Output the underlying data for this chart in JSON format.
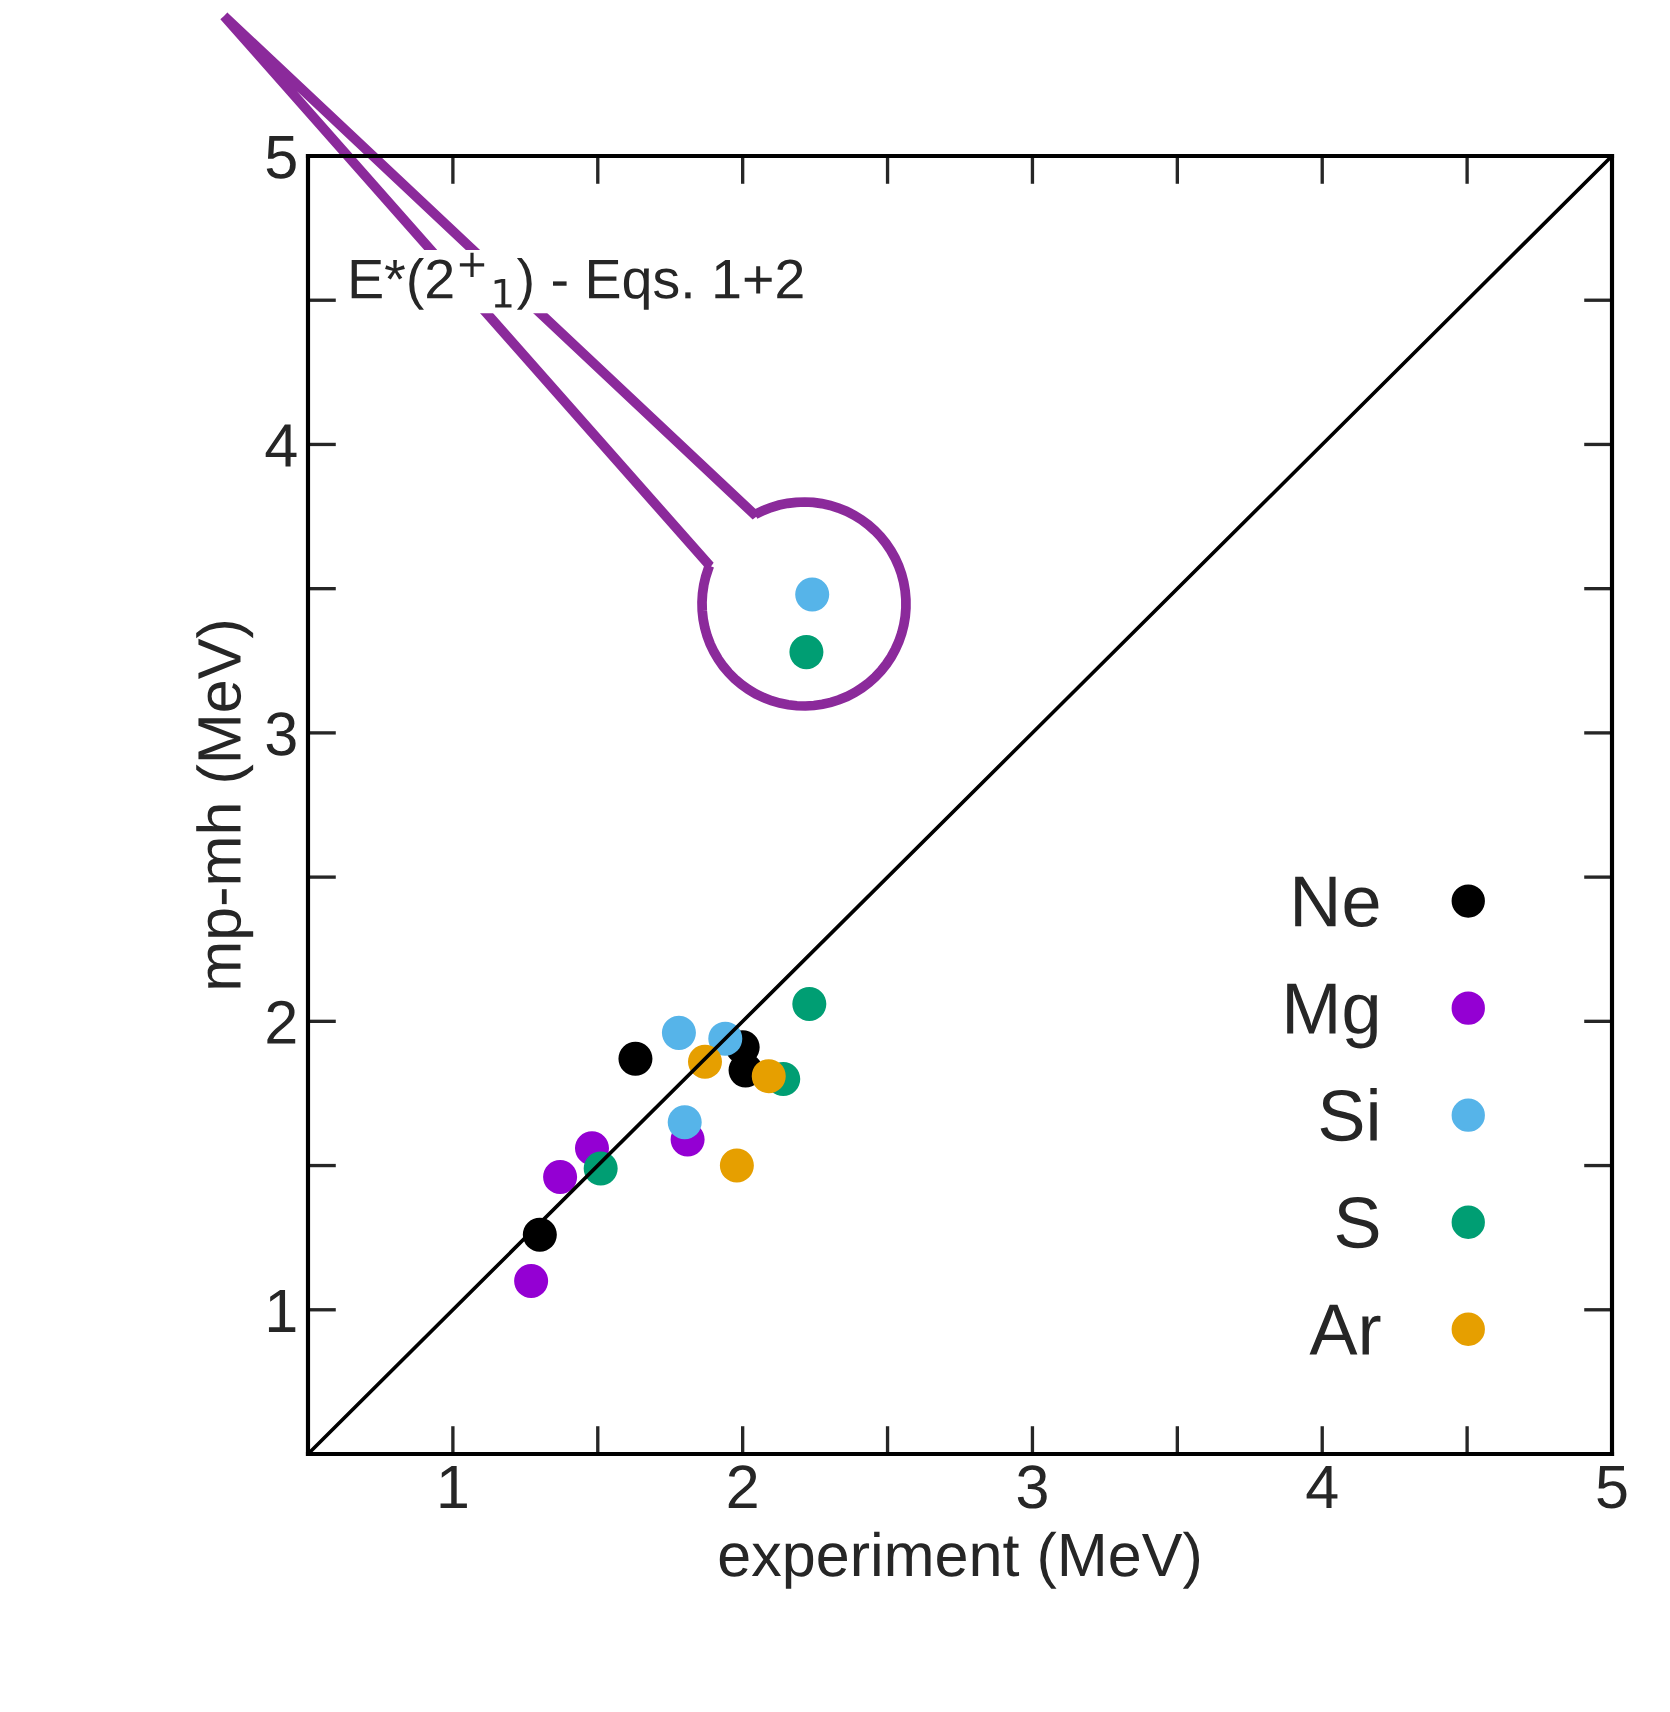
{
  "chart_data": {
    "type": "scatter",
    "xlabel": "experiment (MeV)",
    "ylabel": "mp-mh (MeV)",
    "annotations": [
      "E*(2$^{+}$$_{1}$) - Eqs. 1+2"
    ],
    "xlim": [
      0.5,
      5
    ],
    "ylim": [
      0.5,
      5
    ],
    "xticks": [
      1,
      {
        "value": 1.5,
        "label": null
      },
      2,
      {
        "value": 2.5,
        "label": null
      },
      3,
      {
        "value": 3.5,
        "label": null
      },
      4,
      {
        "value": 4.5,
        "label": null
      },
      5
    ],
    "yticks": [
      1,
      {
        "value": 1.5,
        "label": null
      },
      2,
      {
        "value": 2.5,
        "label": null
      },
      3,
      {
        "value": 3.5,
        "label": null
      },
      4,
      {
        "value": 4.5,
        "label": null
      },
      5
    ],
    "grid": false,
    "legend": "bottom right",
    "marker": "circle",
    "series": [
      {
        "type": "line",
        "color": "#000000",
        "x": [
          0.5,
          5
        ],
        "values": [
          0.5,
          5
        ],
        "marker": "none"
      },
      {
        "name": "Ne",
        "color": "#000000",
        "x": [
          1.63,
          1.3,
          2.0,
          2.01
        ],
        "values": [
          1.87,
          1.26,
          1.91,
          1.83
        ]
      },
      {
        "name": "Mg",
        "color": "#9400d3",
        "x": [
          1.27,
          1.37,
          1.48,
          1.81
        ],
        "values": [
          1.1,
          1.46,
          1.56,
          1.59
        ]
      },
      {
        "name": "Si",
        "color": "#56b4e9",
        "x": [
          1.78,
          1.94,
          1.8,
          2.24
        ],
        "values": [
          1.96,
          1.94,
          1.65,
          3.48
        ]
      },
      {
        "name": "S",
        "color": "#009e73",
        "x": [
          2.23,
          1.51,
          2.14,
          2.22
        ],
        "values": [
          2.06,
          1.49,
          1.8,
          3.28
        ]
      },
      {
        "name": "Ar",
        "color": "#e69f00",
        "x": [
          1.87,
          1.98,
          2.09
        ],
        "values": [
          1.86,
          1.5,
          1.81
        ]
      }
    ]
  }
}
